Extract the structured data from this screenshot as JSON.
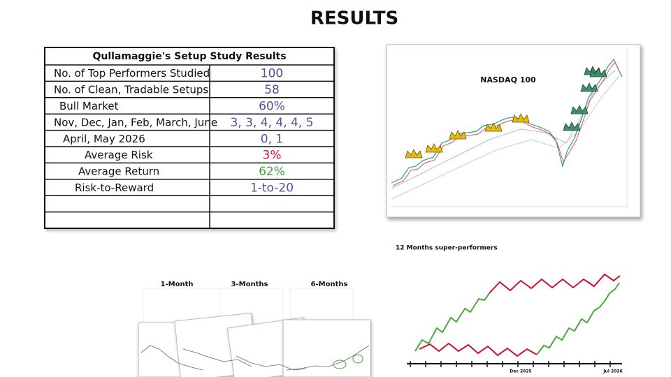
{
  "header": {
    "title": "RESULTS"
  },
  "table": {
    "title": "Qullamaggie's Setup Study Results",
    "rows": [
      {
        "label": "No. of Top Performers Studied",
        "value": "100",
        "color": "#4a5597"
      },
      {
        "label": "No. of Clean, Tradable Setups",
        "value": "58",
        "color": "#4a5597"
      },
      {
        "label": "Bull Market",
        "value": "60%",
        "color": "#4a5597"
      },
      {
        "label": "Nov, Dec, Jan, Feb, March, June",
        "value": "3, 3, 4, 4, 4, 5",
        "color": "#4a5597"
      },
      {
        "label": "April, May 2026",
        "value": "0, 1",
        "color": "#4a5597"
      },
      {
        "label": "Average Risk",
        "value": "3%",
        "color": "#c8102e"
      },
      {
        "label": "Average Return",
        "value": "62%",
        "color": "#3fa535"
      },
      {
        "label": "Risk-to-Reward",
        "value": "1-to-20",
        "color": "#4a5597"
      }
    ]
  },
  "nasdaq": {
    "label": "NASDAQ 100"
  },
  "screens": {
    "labels": [
      "1-Month",
      "3-Months",
      "6-Months"
    ]
  },
  "performers": {
    "title": "12 Months super-performers",
    "axis_labels": [
      "Dec 2025",
      "Jul 2026"
    ]
  }
}
